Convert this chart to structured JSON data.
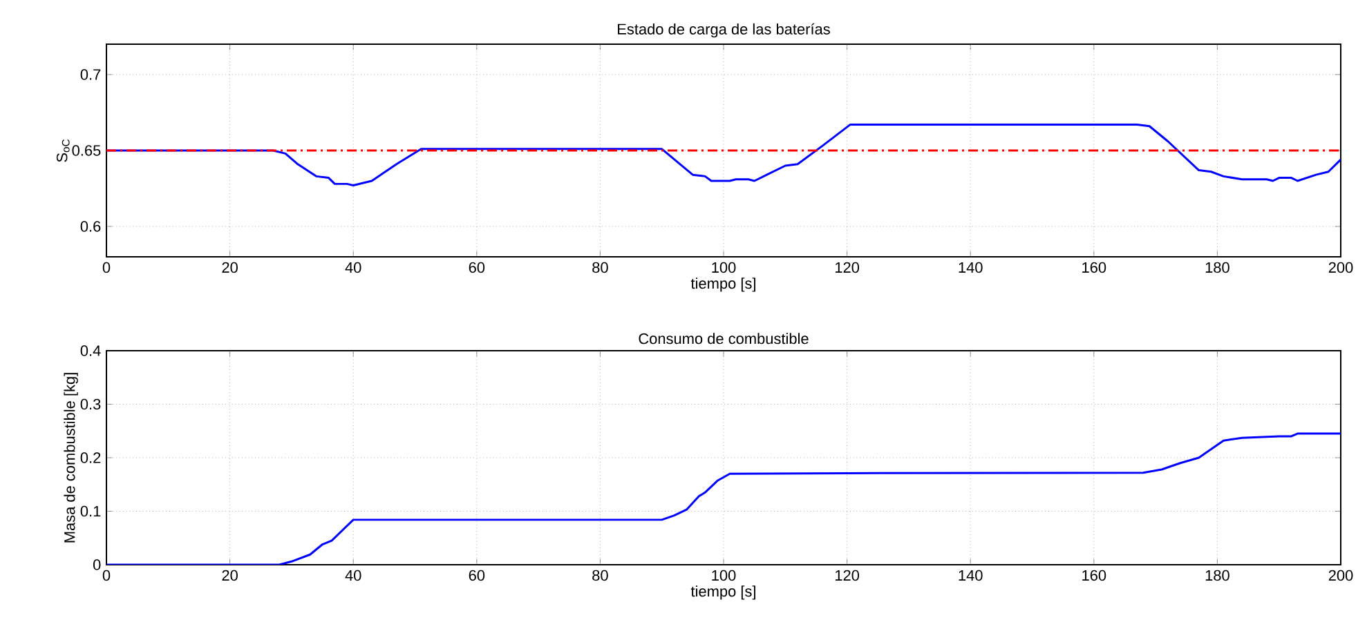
{
  "chart_data": [
    {
      "type": "line",
      "title": "Estado de carga de las baterías",
      "xlabel": "tiempo [s]",
      "ylabel": "S$_{oC}$",
      "xlim": [
        0,
        200
      ],
      "xticks": [
        0,
        20,
        40,
        60,
        80,
        100,
        120,
        140,
        160,
        180,
        200
      ],
      "ylim": [
        0.58,
        0.72
      ],
      "yticks": [
        0.6,
        0.65,
        0.7
      ],
      "grid": true,
      "ref_lines": [
        {
          "axis": "y",
          "value": 0.65,
          "color": "#ff0000",
          "line_style": "dashdot"
        }
      ],
      "series": [
        {
          "color": "#0000ff",
          "x": [
            0,
            27,
            29,
            31,
            34,
            36,
            37,
            39,
            40,
            43,
            47,
            51,
            60,
            90,
            95,
            97,
            98,
            101,
            102,
            104,
            105,
            107,
            110,
            112,
            116,
            120.5,
            167,
            169,
            172,
            177,
            179,
            181,
            184,
            188,
            189,
            190,
            192,
            193,
            196,
            198,
            200
          ],
          "values": [
            0.65,
            0.65,
            0.648,
            0.641,
            0.633,
            0.632,
            0.628,
            0.628,
            0.627,
            0.63,
            0.641,
            0.651,
            0.651,
            0.651,
            0.634,
            0.633,
            0.63,
            0.63,
            0.631,
            0.631,
            0.63,
            0.634,
            0.64,
            0.641,
            0.653,
            0.667,
            0.667,
            0.666,
            0.656,
            0.637,
            0.636,
            0.633,
            0.631,
            0.631,
            0.63,
            0.632,
            0.632,
            0.63,
            0.634,
            0.636,
            0.644
          ]
        }
      ]
    },
    {
      "type": "line",
      "title": "Consumo de combustible",
      "xlabel": "tiempo [s]",
      "ylabel": "Masa de combustible [kg]",
      "xlim": [
        0,
        200
      ],
      "xticks": [
        0,
        20,
        40,
        60,
        80,
        100,
        120,
        140,
        160,
        180,
        200
      ],
      "ylim": [
        0,
        0.4
      ],
      "yticks": [
        0,
        0.1,
        0.2,
        0.3,
        0.4
      ],
      "grid": true,
      "series": [
        {
          "color": "#0000ff",
          "x": [
            0,
            28,
            30,
            33,
            35,
            36.5,
            40,
            90,
            92,
            94,
            96,
            97,
            99,
            101,
            120,
            168,
            171,
            174,
            177,
            181,
            184,
            190,
            192,
            193,
            200
          ],
          "values": [
            0,
            0,
            0.006,
            0.019,
            0.038,
            0.045,
            0.084,
            0.084,
            0.092,
            0.103,
            0.128,
            0.135,
            0.157,
            0.17,
            0.171,
            0.172,
            0.178,
            0.19,
            0.2,
            0.232,
            0.237,
            0.24,
            0.24,
            0.245,
            0.245
          ]
        }
      ]
    }
  ]
}
